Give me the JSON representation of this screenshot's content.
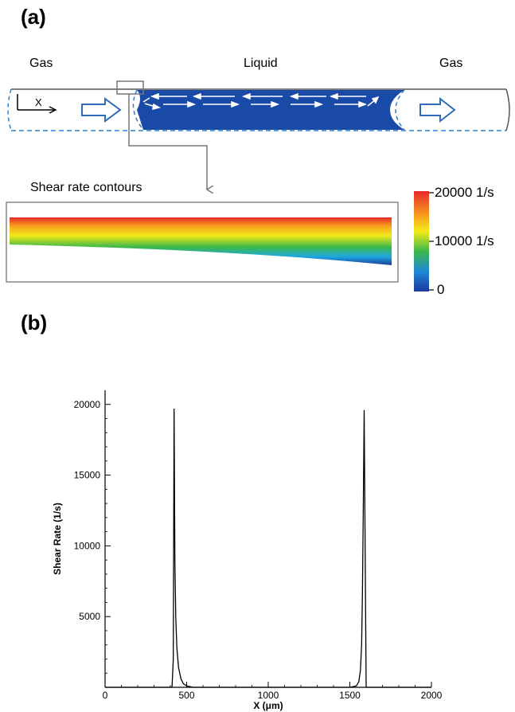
{
  "panel_a": {
    "label": "(a)",
    "gas_left": "Gas",
    "liquid": "Liquid",
    "gas_right": "Gas",
    "axis_x_label": "X",
    "contour_title": "Shear rate contours",
    "colorbar": {
      "top": "20000 1/s",
      "mid": "10000 1/s",
      "bottom": "0",
      "colors": [
        "#e8282a",
        "#f7a21c",
        "#f2ea18",
        "#3cb84a",
        "#1e88d8",
        "#1a3a9c"
      ]
    },
    "liquid_color": "#1a4aa8",
    "dashed_color": "#2e7fd1"
  },
  "panel_b": {
    "label": "(b)"
  },
  "chart_data": {
    "type": "line",
    "xlabel": "X (μm)",
    "ylabel": "Shear Rate (1/s)",
    "xlim": [
      0,
      2000
    ],
    "ylim": [
      0,
      21000
    ],
    "xticks": [
      0,
      500,
      1000,
      1500,
      2000
    ],
    "yticks": [
      5000,
      10000,
      15000,
      20000
    ],
    "xtick_labels": [
      "0",
      "500",
      "1000",
      "1500",
      "2000"
    ],
    "ytick_labels": [
      "5000",
      "10000",
      "15000",
      "20000"
    ],
    "series": [
      {
        "x": [
          0,
          410,
          418,
          423,
          428,
          433,
          440,
          450,
          465,
          480,
          500,
          540,
          1500,
          1540,
          1555,
          1565,
          1572,
          1577,
          1582,
          1588,
          1600,
          2000
        ],
        "y": [
          0,
          0,
          2000,
          19700,
          9000,
          5000,
          2800,
          1400,
          600,
          250,
          100,
          0,
          0,
          100,
          400,
          1200,
          3000,
          6500,
          12000,
          19600,
          0,
          0
        ]
      }
    ]
  }
}
